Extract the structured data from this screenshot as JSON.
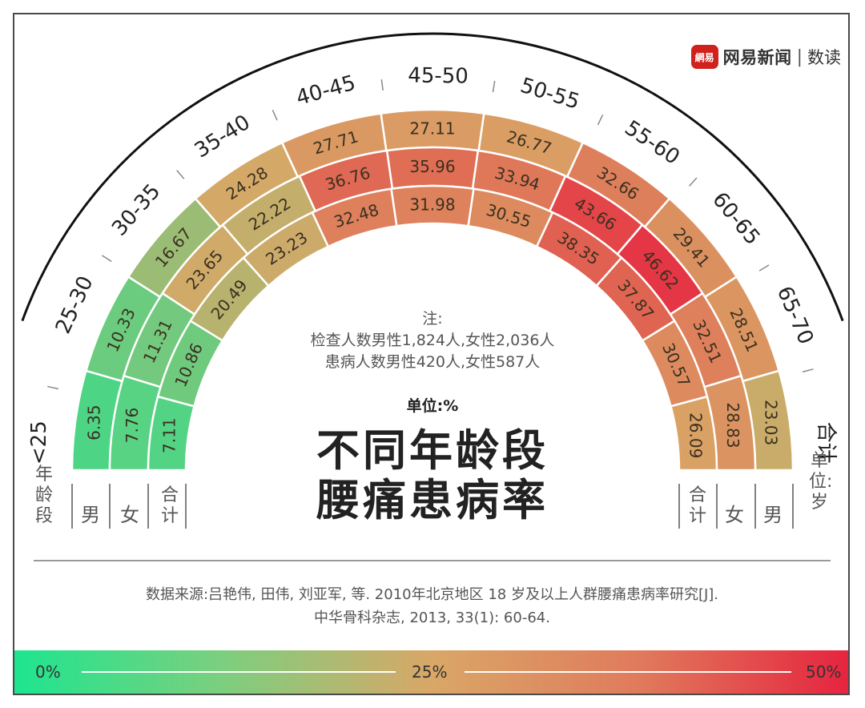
{
  "brand": {
    "logo_text": "網易",
    "name": "网易新闻",
    "separator": "|",
    "sub": "数读"
  },
  "note": {
    "heading": "注:",
    "line1": "检查人数男性1,824人,女性2,036人",
    "line2": "患病人数男性420人,女性587人"
  },
  "unit": "单位:%",
  "title": {
    "line1": "不同年龄段",
    "line2": "腰痛患病率"
  },
  "left_axis": {
    "age_label": "年龄段",
    "male": "男",
    "female": "女",
    "total": "合计"
  },
  "right_axis": {
    "total": "合计",
    "female": "女",
    "male": "男",
    "unit_label": "单位:岁"
  },
  "source": {
    "line1": "数据来源:吕艳伟, 田伟, 刘亚军, 等. 2010年北京地区 18 岁及以上人群腰痛患病率研究[J].",
    "line2": "中华骨科杂志, 2013, 33(1): 60-64."
  },
  "legend": {
    "min_label": "0%",
    "mid_label": "25%",
    "max_label": "50%",
    "colors": [
      "#1ee58f",
      "#d9a767",
      "#e6243f"
    ]
  },
  "chart_data": {
    "type": "heatmap",
    "subtype": "radial-semicircle",
    "title": "不同年龄段腰痛患病率",
    "unit": "%",
    "categories": [
      "<25",
      "25-30",
      "30-35",
      "35-40",
      "40-45",
      "45-50",
      "50-55",
      "55-60",
      "60-65",
      "65-70",
      "合计"
    ],
    "series": [
      {
        "name": "男",
        "ring": "outer",
        "values": [
          6.35,
          10.33,
          16.67,
          24.28,
          27.71,
          27.11,
          26.77,
          32.66,
          29.41,
          28.51,
          23.03
        ]
      },
      {
        "name": "女",
        "ring": "middle",
        "values": [
          7.76,
          11.31,
          23.65,
          22.22,
          36.76,
          35.96,
          33.94,
          43.66,
          46.62,
          32.51,
          28.83
        ]
      },
      {
        "name": "合计",
        "ring": "inner",
        "values": [
          7.11,
          10.86,
          20.49,
          23.23,
          32.48,
          31.98,
          30.55,
          38.35,
          37.87,
          30.57,
          26.09
        ]
      }
    ],
    "color_scale": {
      "min": 0,
      "mid": 25,
      "max": 50,
      "colors": [
        "#1ee58f",
        "#d9a767",
        "#e6243f"
      ]
    },
    "xlabel": "年龄段 (单位:岁)",
    "ylabel": ""
  }
}
